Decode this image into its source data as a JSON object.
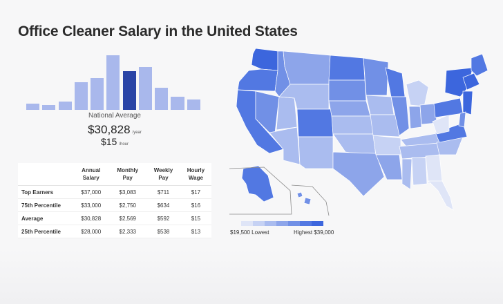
{
  "page": {
    "title": "Office Cleaner Salary in the United States"
  },
  "histogram": {
    "values": [
      0.11,
      0.09,
      0.15,
      0.5,
      0.57,
      0.97,
      0.69,
      0.76,
      0.39,
      0.23,
      0.19
    ],
    "highlight_index": 6,
    "colors": {
      "bar": "#a9b8ec",
      "current": "#2a44a6"
    }
  },
  "summary": {
    "label": "National Average",
    "annual": "$30,828",
    "annual_unit": "/year",
    "hourly": "$15",
    "hourly_unit": "/hour"
  },
  "table": {
    "headers": [
      [
        "Annual",
        "Salary"
      ],
      [
        "Monthly",
        "Pay"
      ],
      [
        "Weekly",
        "Pay"
      ],
      [
        "Hourly",
        "Wage"
      ]
    ],
    "rows": [
      {
        "label": "Top Earners",
        "values": [
          "$37,000",
          "$3,083",
          "$711",
          "$17"
        ]
      },
      {
        "label": "75th Percentile",
        "values": [
          "$33,000",
          "$2,750",
          "$634",
          "$16"
        ]
      },
      {
        "label": "Average",
        "values": [
          "$30,828",
          "$2,569",
          "$592",
          "$15"
        ]
      },
      {
        "label": "25th Percentile",
        "values": [
          "$28,000",
          "$2,333",
          "$538",
          "$13"
        ]
      }
    ]
  },
  "legend": {
    "low": "$19,500 Lowest",
    "high": "Highest $39,000",
    "colors": [
      "#dfe5f7",
      "#c6d2f4",
      "#aabcef",
      "#8da5ea",
      "#7190e6",
      "#5278e2",
      "#3c66dd"
    ]
  }
}
